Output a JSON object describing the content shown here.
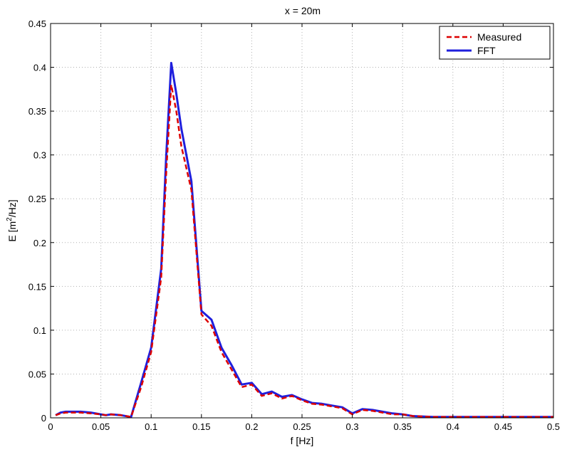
{
  "chart_data": {
    "type": "line",
    "title": "x = 20m",
    "xlabel": "f [Hz]",
    "ylabel_prefix": "E [m",
    "ylabel_sup": "2",
    "ylabel_suffix": "/Hz]",
    "xlim": [
      0,
      0.5
    ],
    "ylim": [
      0,
      0.45
    ],
    "xticks": [
      0,
      0.05,
      0.1,
      0.15,
      0.2,
      0.25,
      0.3,
      0.35,
      0.4,
      0.45,
      0.5
    ],
    "xtick_labels": [
      "0",
      "0.05",
      "0.1",
      "0.15",
      "0.2",
      "0.25",
      "0.3",
      "0.35",
      "0.4",
      "0.45",
      "0.5"
    ],
    "yticks": [
      0,
      0.05,
      0.1,
      0.15,
      0.2,
      0.25,
      0.3,
      0.35,
      0.4,
      0.45
    ],
    "ytick_labels": [
      "0",
      "0.05",
      "0.1",
      "0.15",
      "0.2",
      "0.25",
      "0.3",
      "0.35",
      "0.4",
      "0.45"
    ],
    "grid": true,
    "legend_position": "top-right",
    "series": [
      {
        "name": "Measured",
        "color": "#dd0000",
        "style": "dashed",
        "x": [
          0.005,
          0.01,
          0.015,
          0.02,
          0.03,
          0.04,
          0.05,
          0.055,
          0.06,
          0.07,
          0.08,
          0.09,
          0.1,
          0.11,
          0.115,
          0.12,
          0.125,
          0.13,
          0.14,
          0.15,
          0.16,
          0.17,
          0.18,
          0.19,
          0.2,
          0.21,
          0.22,
          0.23,
          0.24,
          0.25,
          0.26,
          0.27,
          0.28,
          0.29,
          0.3,
          0.31,
          0.32,
          0.33,
          0.34,
          0.35,
          0.36,
          0.38,
          0.4,
          0.45,
          0.5
        ],
        "y": [
          0.003,
          0.005,
          0.006,
          0.006,
          0.006,
          0.005,
          0.004,
          0.003,
          0.004,
          0.003,
          0.001,
          0.035,
          0.075,
          0.16,
          0.28,
          0.38,
          0.35,
          0.31,
          0.26,
          0.118,
          0.105,
          0.075,
          0.055,
          0.035,
          0.038,
          0.025,
          0.028,
          0.022,
          0.025,
          0.02,
          0.016,
          0.015,
          0.013,
          0.011,
          0.004,
          0.009,
          0.008,
          0.006,
          0.004,
          0.004,
          0.002,
          0.001,
          0.001,
          0.001,
          0.001
        ]
      },
      {
        "name": "FFT",
        "color": "#1f1fdd",
        "style": "solid",
        "x": [
          0.005,
          0.01,
          0.015,
          0.02,
          0.03,
          0.04,
          0.05,
          0.055,
          0.06,
          0.07,
          0.08,
          0.09,
          0.1,
          0.11,
          0.115,
          0.12,
          0.125,
          0.13,
          0.14,
          0.15,
          0.16,
          0.17,
          0.18,
          0.19,
          0.2,
          0.21,
          0.22,
          0.23,
          0.24,
          0.25,
          0.26,
          0.27,
          0.28,
          0.29,
          0.3,
          0.31,
          0.32,
          0.33,
          0.34,
          0.35,
          0.36,
          0.38,
          0.4,
          0.45,
          0.5
        ],
        "y": [
          0.003,
          0.006,
          0.007,
          0.007,
          0.007,
          0.006,
          0.004,
          0.003,
          0.004,
          0.003,
          0.001,
          0.04,
          0.08,
          0.17,
          0.3,
          0.405,
          0.37,
          0.33,
          0.27,
          0.122,
          0.112,
          0.08,
          0.06,
          0.038,
          0.04,
          0.027,
          0.03,
          0.024,
          0.026,
          0.021,
          0.017,
          0.016,
          0.014,
          0.012,
          0.005,
          0.01,
          0.009,
          0.007,
          0.005,
          0.004,
          0.002,
          0.001,
          0.001,
          0.001,
          0.001
        ]
      }
    ]
  }
}
